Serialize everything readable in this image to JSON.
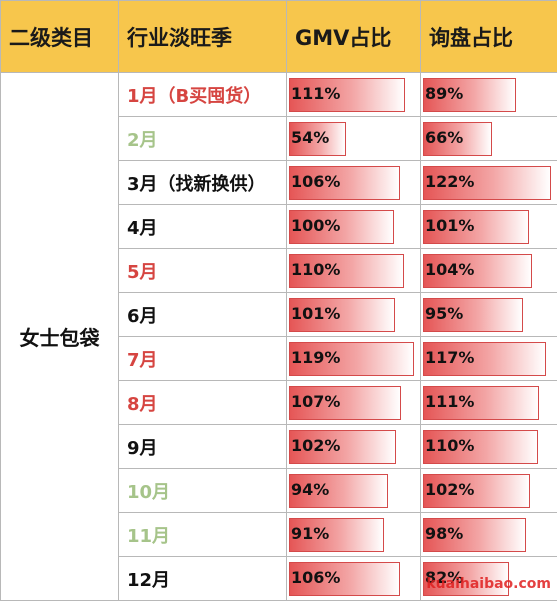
{
  "header": {
    "col1": "二级类目",
    "col2": "行业淡旺季",
    "col3": "GMV占比",
    "col4": "询盘占比"
  },
  "category": "女士包袋",
  "watermark": "kuaihaibao.com",
  "colors": {
    "header_bg": "#f7c64c",
    "peak": "#d64541",
    "low": "#a6c48a",
    "normal": "#111111",
    "bar": "#e55656"
  },
  "chart_data": {
    "type": "table",
    "title": "",
    "columns": [
      "二级类目",
      "行业淡旺季",
      "GMV占比",
      "询盘占比"
    ],
    "rows": [
      {
        "month": "1月（B买囤货）",
        "season": "peak",
        "gmv": "111%",
        "gmv_value": 111,
        "inquiry": "89%",
        "inquiry_value": 89
      },
      {
        "month": "2月",
        "season": "low",
        "gmv": "54%",
        "gmv_value": 54,
        "inquiry": "66%",
        "inquiry_value": 66
      },
      {
        "month": "3月（找新换供）",
        "season": "normal",
        "gmv": "106%",
        "gmv_value": 106,
        "inquiry": "122%",
        "inquiry_value": 122
      },
      {
        "month": "4月",
        "season": "normal",
        "gmv": "100%",
        "gmv_value": 100,
        "inquiry": "101%",
        "inquiry_value": 101
      },
      {
        "month": "5月",
        "season": "peak",
        "gmv": "110%",
        "gmv_value": 110,
        "inquiry": "104%",
        "inquiry_value": 104
      },
      {
        "month": "6月",
        "season": "normal",
        "gmv": "101%",
        "gmv_value": 101,
        "inquiry": "95%",
        "inquiry_value": 95
      },
      {
        "month": "7月",
        "season": "peak",
        "gmv": "119%",
        "gmv_value": 119,
        "inquiry": "117%",
        "inquiry_value": 117
      },
      {
        "month": "8月",
        "season": "peak",
        "gmv": "107%",
        "gmv_value": 107,
        "inquiry": "111%",
        "inquiry_value": 111
      },
      {
        "month": "9月",
        "season": "normal",
        "gmv": "102%",
        "gmv_value": 102,
        "inquiry": "110%",
        "inquiry_value": 110
      },
      {
        "month": "10月",
        "season": "low",
        "gmv": "94%",
        "gmv_value": 94,
        "inquiry": "102%",
        "inquiry_value": 102
      },
      {
        "month": "11月",
        "season": "low",
        "gmv": "91%",
        "gmv_value": 91,
        "inquiry": "98%",
        "inquiry_value": 98
      },
      {
        "month": "12月",
        "season": "normal",
        "gmv": "106%",
        "gmv_value": 106,
        "inquiry": "82%",
        "inquiry_value": 82
      }
    ],
    "bar_max": 122
  }
}
